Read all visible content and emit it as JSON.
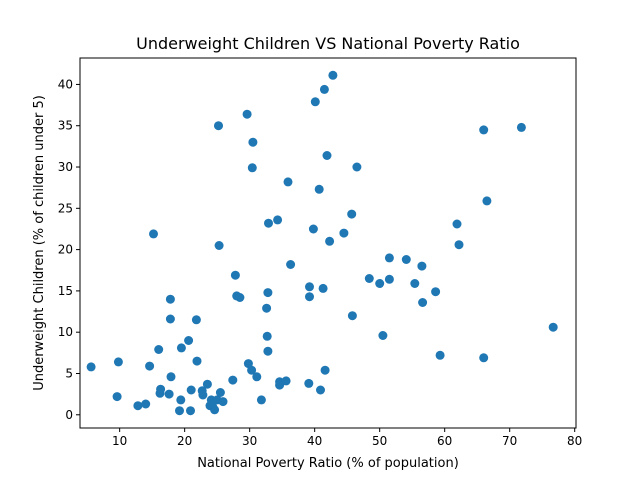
{
  "chart_data": {
    "type": "scatter",
    "title": "Underweight Children VS National Poverty Ratio",
    "xlabel": "National Poverty Ratio (% of population)",
    "ylabel": "Underweight Children (% of children under 5)",
    "xlim": [
      3.9,
      80.2
    ],
    "ylim": [
      -1.6,
      43.2
    ],
    "xticks": [
      10,
      20,
      30,
      40,
      50,
      60,
      70,
      80
    ],
    "yticks": [
      0,
      5,
      10,
      15,
      20,
      25,
      30,
      35,
      40
    ],
    "grid": false,
    "marker_color": "#1f77b4",
    "points": [
      [
        5.6,
        5.8
      ],
      [
        9.6,
        2.2
      ],
      [
        9.8,
        6.4
      ],
      [
        12.8,
        1.1
      ],
      [
        14.0,
        1.3
      ],
      [
        14.6,
        5.9
      ],
      [
        15.2,
        21.9
      ],
      [
        16.0,
        7.9
      ],
      [
        16.2,
        2.6
      ],
      [
        16.3,
        3.1
      ],
      [
        17.6,
        2.5
      ],
      [
        17.8,
        11.6
      ],
      [
        17.8,
        14.0
      ],
      [
        17.9,
        4.6
      ],
      [
        19.2,
        0.5
      ],
      [
        19.4,
        1.8
      ],
      [
        19.5,
        8.1
      ],
      [
        20.6,
        9.0
      ],
      [
        20.9,
        0.5
      ],
      [
        21.0,
        3.0
      ],
      [
        21.8,
        11.5
      ],
      [
        21.9,
        6.5
      ],
      [
        22.7,
        2.9
      ],
      [
        22.8,
        2.4
      ],
      [
        23.5,
        3.7
      ],
      [
        23.9,
        1.1
      ],
      [
        24.1,
        1.8
      ],
      [
        24.3,
        1.0
      ],
      [
        24.6,
        0.6
      ],
      [
        25.0,
        1.8
      ],
      [
        25.2,
        35.0
      ],
      [
        25.3,
        20.5
      ],
      [
        25.5,
        2.7
      ],
      [
        25.9,
        1.6
      ],
      [
        27.4,
        4.2
      ],
      [
        27.8,
        16.9
      ],
      [
        28.0,
        14.4
      ],
      [
        28.5,
        14.2
      ],
      [
        29.6,
        36.4
      ],
      [
        29.8,
        6.2
      ],
      [
        30.3,
        5.4
      ],
      [
        30.4,
        29.9
      ],
      [
        30.5,
        33.0
      ],
      [
        31.1,
        4.6
      ],
      [
        31.8,
        1.8
      ],
      [
        32.6,
        12.9
      ],
      [
        32.7,
        9.5
      ],
      [
        32.8,
        7.7
      ],
      [
        32.8,
        14.8
      ],
      [
        32.9,
        23.2
      ],
      [
        34.3,
        23.6
      ],
      [
        34.6,
        4.0
      ],
      [
        34.6,
        3.6
      ],
      [
        35.6,
        4.1
      ],
      [
        35.9,
        28.2
      ],
      [
        36.3,
        18.2
      ],
      [
        39.1,
        3.8
      ],
      [
        39.2,
        15.5
      ],
      [
        39.2,
        14.3
      ],
      [
        39.8,
        22.5
      ],
      [
        40.1,
        37.9
      ],
      [
        40.7,
        27.3
      ],
      [
        40.9,
        3.0
      ],
      [
        41.3,
        15.3
      ],
      [
        41.5,
        39.4
      ],
      [
        41.6,
        5.4
      ],
      [
        41.9,
        31.4
      ],
      [
        42.3,
        21.0
      ],
      [
        42.8,
        41.1
      ],
      [
        44.5,
        22.0
      ],
      [
        45.7,
        24.3
      ],
      [
        45.8,
        12.0
      ],
      [
        46.5,
        30.0
      ],
      [
        48.4,
        16.5
      ],
      [
        50.0,
        15.9
      ],
      [
        50.5,
        9.6
      ],
      [
        51.5,
        19.0
      ],
      [
        51.5,
        16.4
      ],
      [
        54.1,
        18.8
      ],
      [
        55.4,
        15.9
      ],
      [
        56.5,
        18.0
      ],
      [
        56.6,
        13.6
      ],
      [
        58.6,
        14.9
      ],
      [
        59.3,
        7.2
      ],
      [
        61.9,
        23.1
      ],
      [
        62.2,
        20.6
      ],
      [
        66.0,
        34.5
      ],
      [
        66.0,
        6.9
      ],
      [
        66.5,
        25.9
      ],
      [
        71.8,
        34.8
      ],
      [
        76.7,
        10.6
      ]
    ]
  }
}
